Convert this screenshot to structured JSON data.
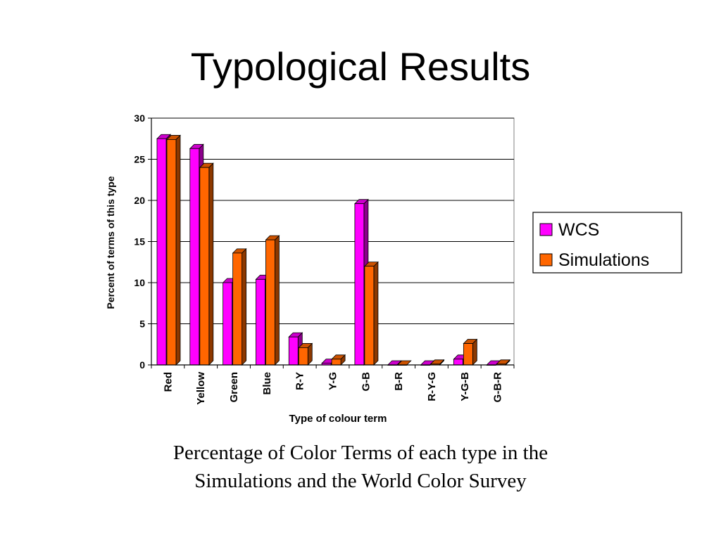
{
  "slide": {
    "title": "Typological Results",
    "caption_line1": "Percentage of Color Terms of each type in the",
    "caption_line2": "Simulations and the World Color Survey"
  },
  "chart_data": {
    "type": "bar",
    "xlabel": "Type of colour term",
    "ylabel": "Percent of terms of this type",
    "ylim": [
      0,
      30
    ],
    "yticks": [
      0,
      5,
      10,
      15,
      20,
      25,
      30
    ],
    "categories": [
      "Red",
      "Yellow",
      "Green",
      "Blue",
      "R-Y",
      "Y-G",
      "G-B",
      "B-R",
      "R-Y-G",
      "Y-G-B",
      "G-B-R"
    ],
    "series": [
      {
        "name": "WCS",
        "color": "#ff00ff",
        "values": [
          27.5,
          26.3,
          10,
          10.4,
          3.4,
          0.2,
          19.6,
          0,
          0,
          0.7,
          0
        ]
      },
      {
        "name": "Simulations",
        "color": "#ff6600",
        "values": [
          27.4,
          24,
          13.6,
          15.2,
          2.1,
          0.7,
          12,
          0,
          0.1,
          2.6,
          0.1
        ]
      }
    ],
    "grid": true,
    "legend": "right"
  }
}
